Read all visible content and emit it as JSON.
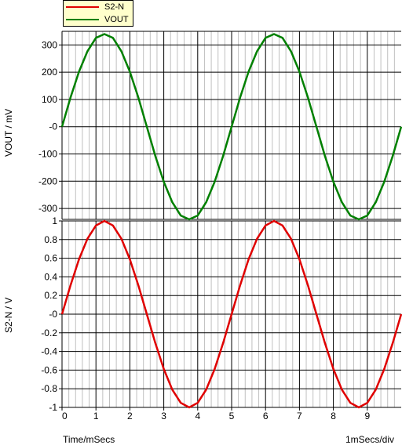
{
  "legend": [
    {
      "name": "S2-N",
      "color": "#e00000"
    },
    {
      "name": "VOUT",
      "color": "#008000"
    }
  ],
  "x_axis": {
    "label": "Time/mSecs",
    "scale_label": "1mSecs/div",
    "min": 0,
    "max": 10,
    "ticks": [
      "0",
      "1",
      "2",
      "3",
      "4",
      "5",
      "6",
      "7",
      "8",
      "9"
    ]
  },
  "chart_data": [
    {
      "type": "line",
      "series": [
        {
          "name": "VOUT",
          "color": "#008000",
          "x": [
            0,
            0.25,
            0.5,
            0.75,
            1,
            1.25,
            1.5,
            1.75,
            2,
            2.25,
            2.5,
            2.75,
            3,
            3.25,
            3.5,
            3.75,
            4,
            4.25,
            4.5,
            4.75,
            5,
            5.25,
            5.5,
            5.75,
            6,
            6.25,
            6.5,
            6.75,
            7,
            7.25,
            7.5,
            7.75,
            8,
            8.25,
            8.5,
            8.75,
            9,
            9.25,
            9.5,
            9.75,
            10
          ],
          "y": [
            0,
            107,
            202,
            277,
            326,
            340,
            326,
            277,
            202,
            107,
            0,
            -107,
            -202,
            -277,
            -326,
            -340,
            -326,
            -277,
            -202,
            -107,
            0,
            107,
            202,
            277,
            326,
            340,
            326,
            277,
            202,
            107,
            0,
            -107,
            -202,
            -277,
            -326,
            -340,
            -326,
            -277,
            -202,
            -107,
            0
          ]
        }
      ],
      "ylabel": "VOUT / mV",
      "ylim": [
        -340,
        350
      ],
      "yticks": [
        300,
        200,
        100,
        0,
        -100,
        -200,
        -300
      ],
      "ytick_labels": [
        "300",
        "200",
        "100",
        "-0",
        "-100",
        "-200",
        "-300"
      ],
      "grid": true
    },
    {
      "type": "line",
      "series": [
        {
          "name": "S2-N",
          "color": "#e00000",
          "x": [
            0,
            0.25,
            0.5,
            0.75,
            1,
            1.25,
            1.5,
            1.75,
            2,
            2.25,
            2.5,
            2.75,
            3,
            3.25,
            3.5,
            3.75,
            4,
            4.25,
            4.5,
            4.75,
            5,
            5.25,
            5.5,
            5.75,
            6,
            6.25,
            6.5,
            6.75,
            7,
            7.25,
            7.5,
            7.75,
            8,
            8.25,
            8.5,
            8.75,
            9,
            9.25,
            9.5,
            9.75,
            10
          ],
          "y": [
            0,
            0.309,
            0.588,
            0.809,
            0.951,
            1,
            0.951,
            0.809,
            0.588,
            0.309,
            0,
            -0.309,
            -0.588,
            -0.809,
            -0.951,
            -1,
            -0.951,
            -0.809,
            -0.588,
            -0.309,
            0,
            0.309,
            0.588,
            0.809,
            0.951,
            1,
            0.951,
            0.809,
            0.588,
            0.309,
            0,
            -0.309,
            -0.588,
            -0.809,
            -0.951,
            -1,
            -0.951,
            -0.809,
            -0.588,
            -0.309,
            0
          ]
        }
      ],
      "ylabel": "S2-N / V",
      "ylim": [
        -1,
        1
      ],
      "yticks": [
        1,
        0.8,
        0.6,
        0.4,
        0.2,
        0,
        -0.2,
        -0.4,
        -0.6,
        -0.8,
        -1
      ],
      "ytick_labels": [
        "1",
        "0.8",
        "0.6",
        "0.4",
        "0.2",
        "-0",
        "-0.2",
        "-0.4",
        "-0.6",
        "-0.8",
        "-1"
      ],
      "grid": true
    }
  ]
}
